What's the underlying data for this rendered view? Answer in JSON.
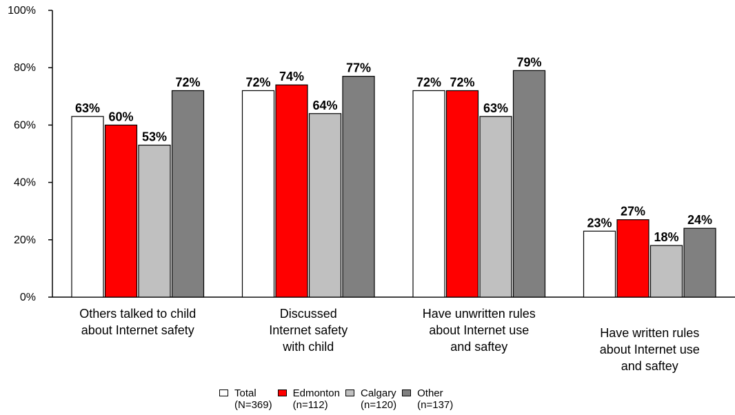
{
  "chart_data": {
    "type": "bar",
    "categories": [
      [
        "Others talked to child",
        "about Internet safety"
      ],
      [
        "Discussed",
        "Internet safety",
        "with child"
      ],
      [
        "Have unwritten rules",
        "about Internet use",
        "and saftey"
      ],
      [
        "Have written rules",
        "about Internet use",
        "and saftey"
      ]
    ],
    "series": [
      {
        "name": "Total",
        "sample": "(N=369)",
        "color": "#ffffff",
        "values": [
          63,
          72,
          72,
          23
        ],
        "labels": [
          "63%",
          "72%",
          "72%",
          "23%"
        ]
      },
      {
        "name": "Edmonton",
        "sample": "(n=112)",
        "color": "#ff0000",
        "values": [
          60,
          74,
          72,
          27
        ],
        "labels": [
          "60%",
          "74%",
          "72%",
          "27%"
        ]
      },
      {
        "name": "Calgary",
        "sample": "(n=120)",
        "color": "#c0c0c0",
        "values": [
          53,
          64,
          63,
          18
        ],
        "labels": [
          "53%",
          "64%",
          "63%",
          "18%"
        ]
      },
      {
        "name": "Other",
        "sample": "(n=137)",
        "color": "#808080",
        "values": [
          72,
          77,
          79,
          24
        ],
        "labels": [
          "72%",
          "77%",
          "79%",
          "24%"
        ]
      }
    ],
    "ylim": [
      0,
      100
    ],
    "yticks": [
      0,
      20,
      40,
      60,
      80,
      100
    ],
    "ytick_labels": [
      "0%",
      "20%",
      "40%",
      "60%",
      "80%",
      "100%"
    ],
    "grid": false,
    "legend_position": "bottom"
  }
}
